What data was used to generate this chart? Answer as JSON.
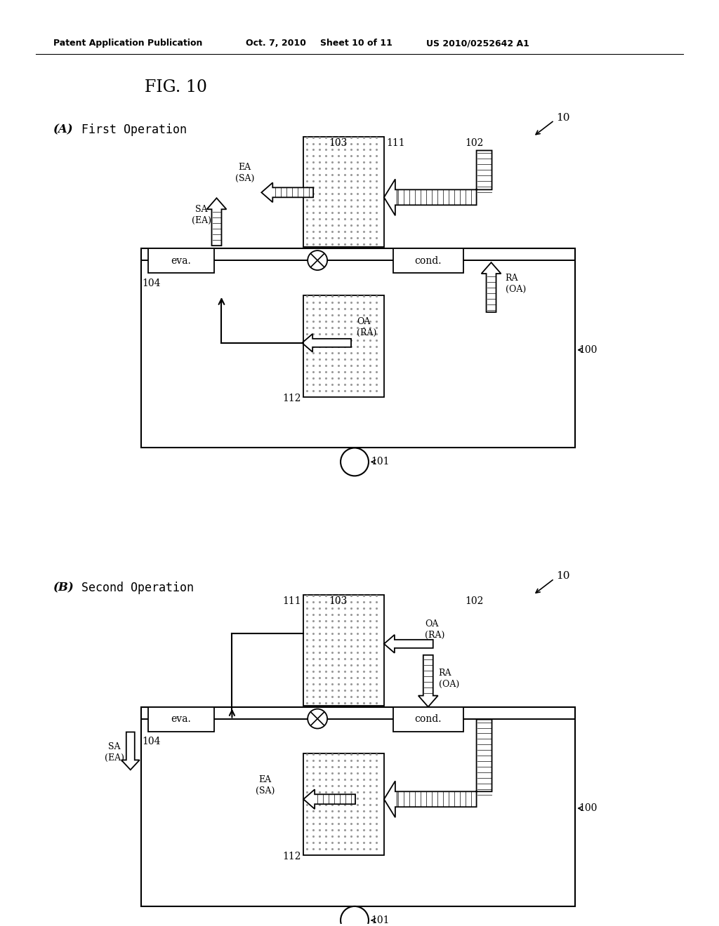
{
  "bg_color": "#ffffff",
  "header_text": "Patent Application Publication",
  "header_date": "Oct. 7, 2010",
  "header_sheet": "Sheet 10 of 11",
  "header_patent": "US 2010/0252642 A1",
  "fig_title": "FIG. 10",
  "diag_A_label": "(A)",
  "diag_A_label2": "First Operation",
  "diag_B_label": "(B)",
  "diag_B_label2": "Second Operation",
  "note_10": "10",
  "note_100": "100",
  "note_101": "101",
  "note_102": "102",
  "note_103": "103",
  "note_104": "104",
  "note_111": "111",
  "note_112": "112",
  "eva_text": "eva.",
  "cond_text": "cond.",
  "ea_sa": "EA\n(SA)",
  "sa_ea": "SA\n(EA)",
  "oa_ra": "OA\n(RA)",
  "ra_oa": "RA\n(OA)"
}
